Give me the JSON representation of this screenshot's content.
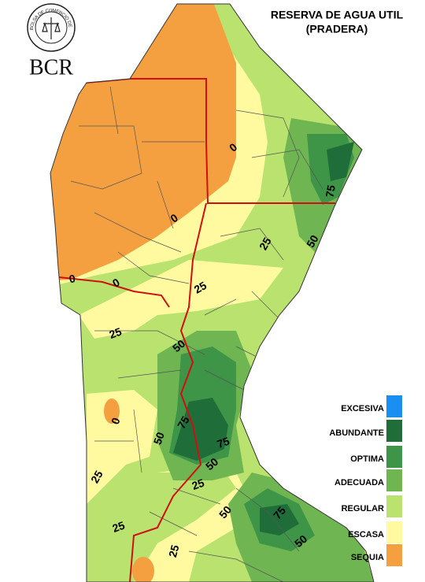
{
  "logo": {
    "seal": "BOLSA DE COMERCIO DE ROSARIO",
    "name": "BCR"
  },
  "title": [
    "RESERVA DE AGUA UTIL",
    "(PRADERA)"
  ],
  "legend": [
    {
      "name": "EXCESIVA",
      "color": "#1a8ff0"
    },
    {
      "name": "ABUNDANTE",
      "color": "#1f6e3a"
    },
    {
      "name": "OPTIMA",
      "color": "#3e9447"
    },
    {
      "name": "ADECUADA",
      "color": "#6fb552"
    },
    {
      "name": "REGULAR",
      "color": "#b9e36e"
    },
    {
      "name": "ESCASA",
      "color": "#fffaa0"
    },
    {
      "name": "SEQUIA",
      "color": "#f5a040"
    }
  ],
  "contour_labels": [
    0,
    0,
    0,
    0,
    0,
    25,
    25,
    25,
    25,
    25,
    25,
    25,
    50,
    50,
    50,
    50,
    50,
    50,
    75,
    75,
    75,
    75
  ]
}
